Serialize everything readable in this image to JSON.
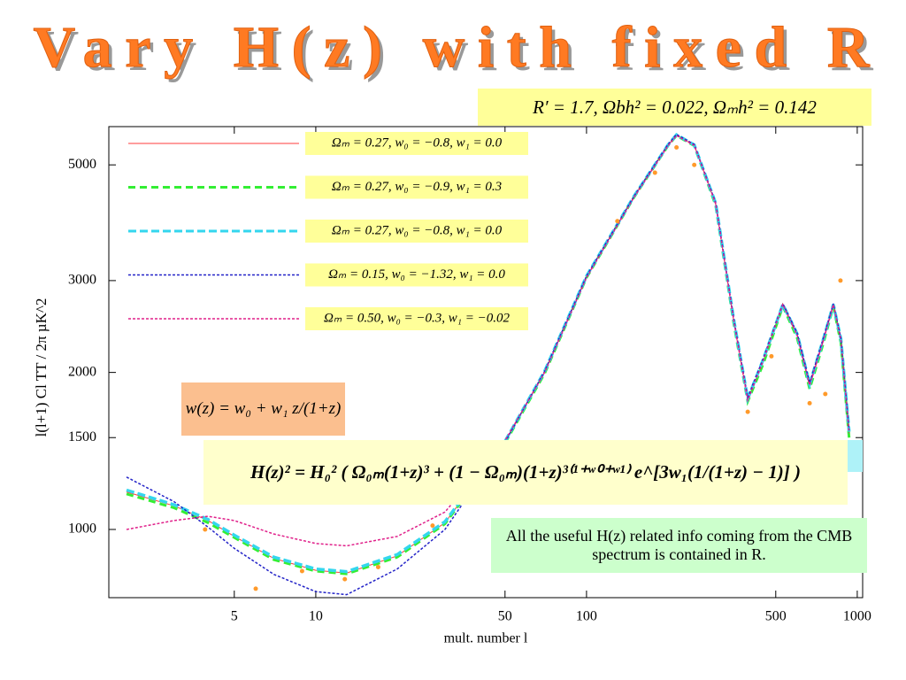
{
  "chart_data": {
    "type": "line",
    "title": "Vary H(z) with fixed R",
    "parameters": "R′ = 1.7,   Ωbh² = 0.022,   Ωₘh² = 0.142",
    "w_formula": "w(z) = w₀ + w₁ z/(1+z)",
    "h_formula": "H(z)² = H₀² ( Ω₀ₘ(1+z)³ + (1 − Ω₀ₘ)(1+z)³⁽¹⁺ʷ⁰⁺ʷ¹⁾ e^[3w₁(1/(1+z) − 1)] )",
    "annotation": "All the useful H(z) related info coming from the CMB spectrum is contained in R.",
    "x_label": "mult. number l",
    "y_label": "l(l+1) Cl TT / 2π µK^2",
    "x_log": true,
    "y_log": true,
    "xlim": [
      1.72,
      1047
    ],
    "ylim": [
      740,
      5920
    ],
    "xticks": [
      5,
      10,
      50,
      100,
      500,
      1000
    ],
    "yticks": [
      1000,
      1500,
      2000,
      3000,
      5000
    ],
    "x": [
      2,
      3,
      4,
      5,
      7,
      10,
      13,
      20,
      30,
      50,
      70,
      100,
      150,
      200,
      215,
      250,
      300,
      350,
      394,
      450,
      531,
      600,
      667,
      750,
      816,
      870,
      933
    ],
    "series": [
      {
        "name": "Ωₘ = 0.27,   w₀ = −0.8,   w₁ = 0.0",
        "color": "#ff3b3b",
        "width": 1,
        "dash": "",
        "values": [
          1180,
          1110,
          1040,
          970,
          880,
          835,
          825,
          890,
          1030,
          1470,
          2000,
          3050,
          4350,
          5450,
          5700,
          5450,
          4200,
          2500,
          1770,
          2100,
          2690,
          2350,
          1880,
          2300,
          2690,
          2300,
          1520
        ]
      },
      {
        "name": "Ωₘ = 0.27,   w₀ = −0.9,   w₁ = 0.3",
        "color": "#33ee33",
        "width": 3,
        "dash": "8 5",
        "values": [
          1170,
          1100,
          1030,
          965,
          875,
          832,
          822,
          885,
          1025,
          1465,
          1990,
          3040,
          4340,
          5440,
          5690,
          5440,
          4180,
          2480,
          1760,
          2080,
          2680,
          2330,
          1860,
          2280,
          2680,
          2280,
          1500
        ]
      },
      {
        "name": "Ωₘ = 0.27,   w₀ = −0.8,   w₁ = 0.0",
        "color": "#33d6ee",
        "width": 3.5,
        "dash": "9 4",
        "values": [
          1190,
          1115,
          1045,
          975,
          885,
          840,
          830,
          895,
          1035,
          1475,
          2010,
          3060,
          4360,
          5460,
          5710,
          5460,
          4220,
          2520,
          1780,
          2120,
          2700,
          2370,
          1900,
          2320,
          2700,
          2320,
          1540
        ]
      },
      {
        "name": "Ωₘ = 0.15,   w₀ = −1.32,   w₁ = 0.0",
        "color": "#2323c8",
        "width": 1.5,
        "dash": "3 2",
        "values": [
          1260,
          1130,
          1010,
          920,
          820,
          760,
          750,
          840,
          1000,
          1470,
          2010,
          3060,
          4360,
          5470,
          5720,
          5470,
          4230,
          2530,
          1790,
          2130,
          2710,
          2380,
          1910,
          2330,
          2710,
          2330,
          1550
        ]
      },
      {
        "name": "Ωₘ = 0.50,   w₀ = −0.3,   w₁ = −0.02",
        "color": "#e0208a",
        "width": 1.5,
        "dash": "3 2",
        "values": [
          1000,
          1040,
          1060,
          1040,
          980,
          940,
          930,
          970,
          1080,
          1480,
          2000,
          3040,
          4340,
          5440,
          5690,
          5450,
          4210,
          2510,
          1770,
          2110,
          2700,
          2360,
          1890,
          2310,
          2700,
          2310,
          1530
        ]
      }
    ],
    "points": {
      "color": "#ff9a2a",
      "x": [
        3.9,
        6,
        8.9,
        12.8,
        17,
        27,
        130,
        179,
        215,
        250,
        394,
        482,
        667,
        762,
        867
      ],
      "values": [
        1000,
        770,
        832,
        803,
        847,
        1017,
        3900,
        4830,
        5400,
        5000,
        1681,
        2148,
        1746,
        1818,
        3000
      ]
    }
  }
}
